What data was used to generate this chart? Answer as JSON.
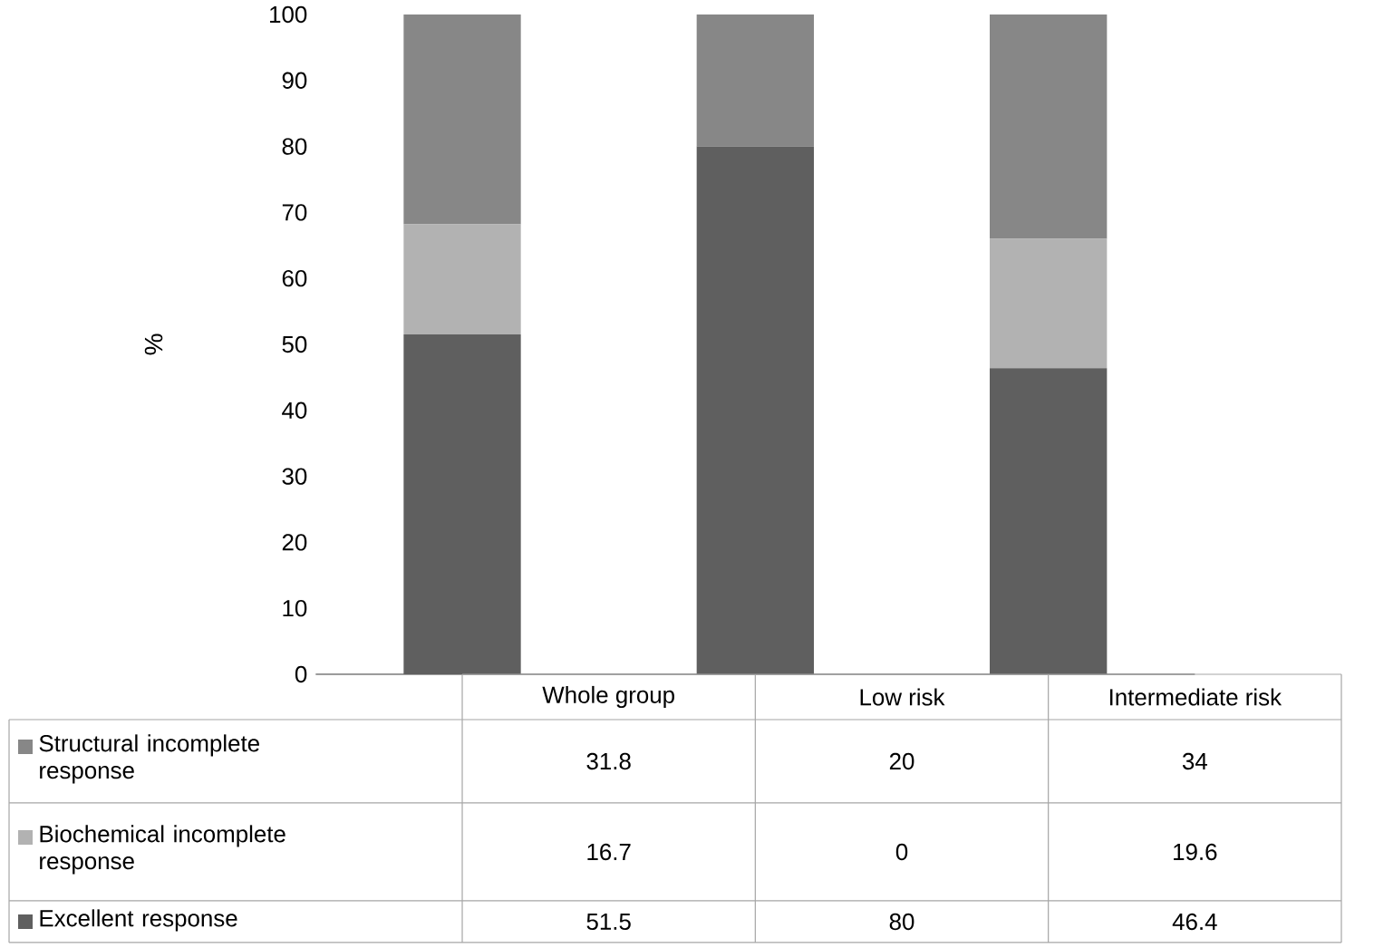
{
  "chart_data": {
    "type": "bar",
    "stacked": true,
    "ylabel": "%",
    "categories": [
      "Whole group",
      "Low risk",
      "Intermediate risk"
    ],
    "series": [
      {
        "name": "Excellent response",
        "color": "#5f5f5f",
        "values": [
          51.5,
          80,
          46.4
        ]
      },
      {
        "name": "Biochemical incomplete response",
        "color": "#b2b2b2",
        "values": [
          16.7,
          0,
          19.6
        ]
      },
      {
        "name": "Structural incomplete response",
        "color": "#878787",
        "values": [
          31.8,
          20,
          34
        ]
      }
    ],
    "ylim": [
      0,
      100
    ],
    "yticks": [
      0,
      10,
      20,
      30,
      40,
      50,
      60,
      70,
      80,
      90,
      100
    ],
    "grid": false,
    "legend": "bottom",
    "data_labels": true
  }
}
